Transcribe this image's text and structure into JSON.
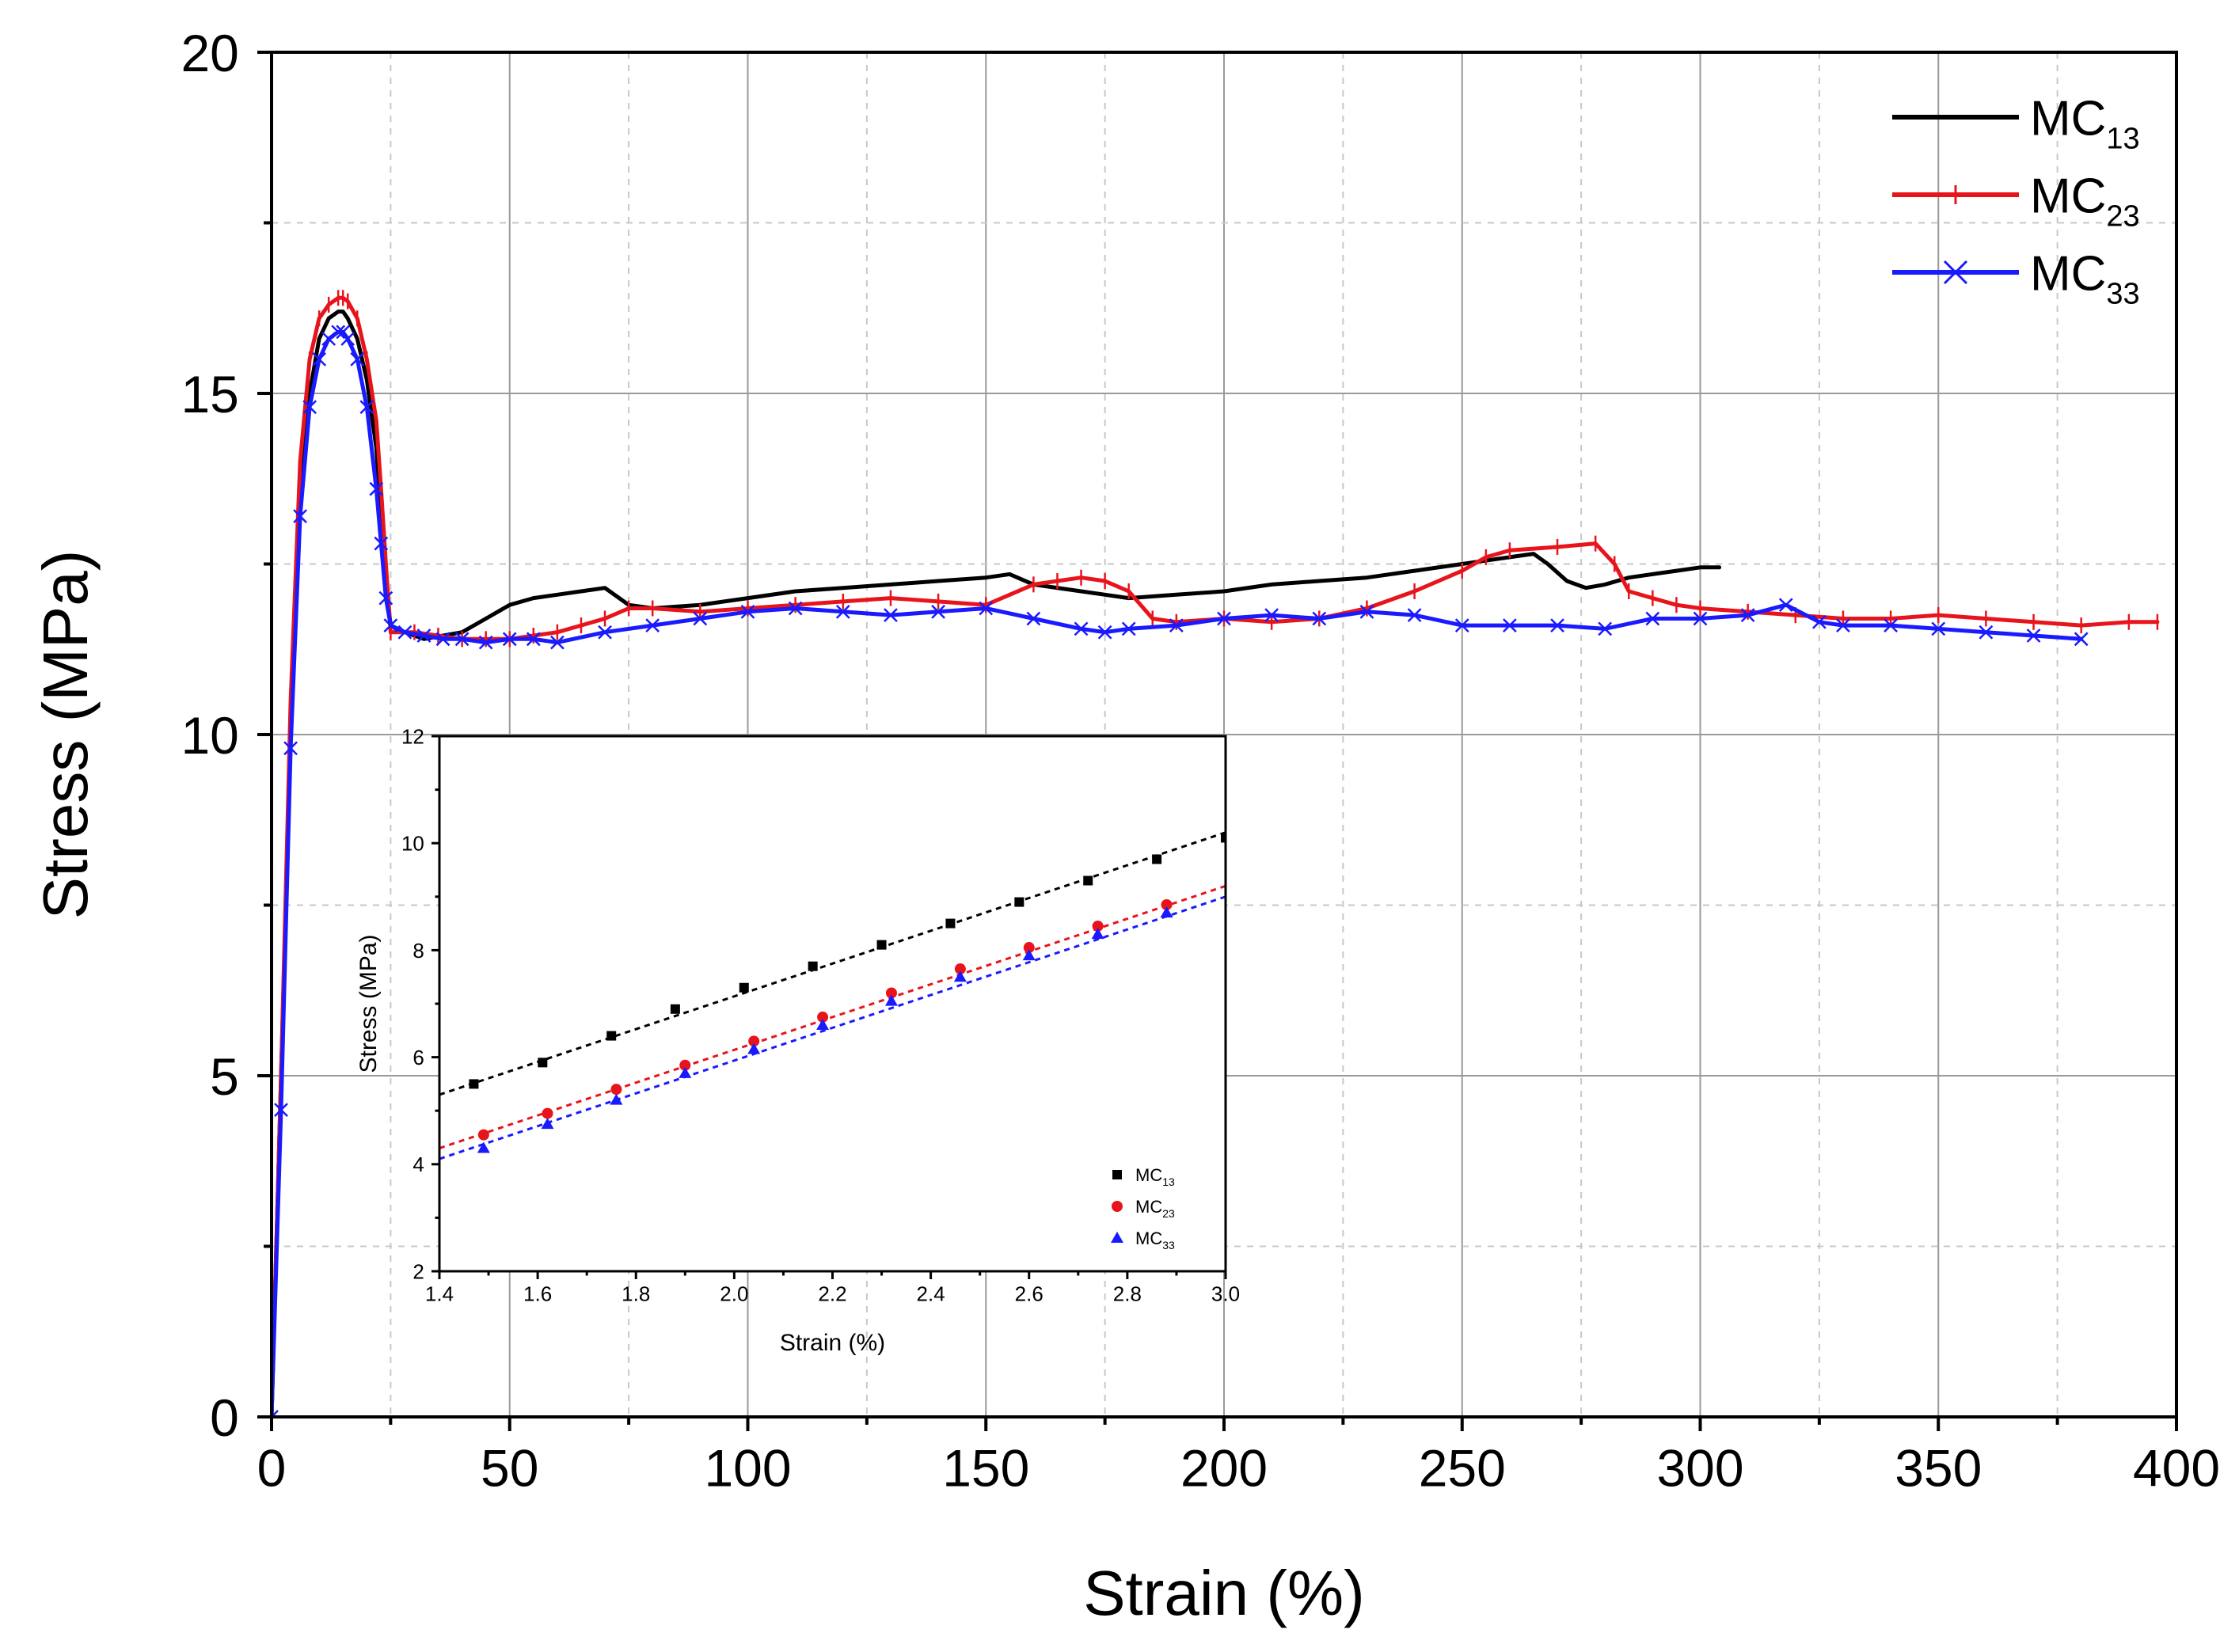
{
  "chart_data": [
    {
      "id": "main",
      "type": "line",
      "title": "",
      "xlabel": "Strain (%)",
      "ylabel": "Stress (MPa)",
      "xlim": [
        0,
        400
      ],
      "ylim": [
        0,
        20
      ],
      "xticks": [
        0,
        50,
        100,
        150,
        200,
        250,
        300,
        350,
        400
      ],
      "yticks": [
        0,
        5,
        10,
        15,
        20
      ],
      "xtick_labels": [
        "0",
        "50",
        "100",
        "150",
        "200",
        "250",
        "300",
        "350",
        "400"
      ],
      "ytick_labels": [
        "0",
        "5",
        "10",
        "15",
        "20"
      ],
      "grid": true,
      "legend_position": "top-right",
      "series": [
        {
          "name": "MC13",
          "legend_main": "MC",
          "legend_sub": "13",
          "color": "#000000",
          "marker": "none",
          "x": [
            0,
            2,
            4,
            6,
            8,
            10,
            12,
            14,
            15,
            16,
            18,
            20,
            22,
            23,
            24,
            25,
            28,
            32,
            36,
            40,
            45,
            50,
            55,
            60,
            65,
            70,
            75,
            80,
            90,
            100,
            110,
            120,
            130,
            140,
            150,
            155,
            160,
            170,
            180,
            190,
            200,
            210,
            220,
            230,
            240,
            250,
            255,
            260,
            265,
            268,
            272,
            276,
            280,
            285,
            290,
            295,
            300,
            304
          ],
          "y": [
            0,
            5,
            10,
            13.5,
            15,
            15.8,
            16.1,
            16.2,
            16.2,
            16.1,
            15.8,
            15.2,
            14.2,
            13.2,
            12.2,
            11.6,
            11.5,
            11.4,
            11.45,
            11.5,
            11.7,
            11.9,
            12.0,
            12.05,
            12.1,
            12.15,
            11.9,
            11.85,
            11.9,
            12.0,
            12.1,
            12.15,
            12.2,
            12.25,
            12.3,
            12.35,
            12.2,
            12.1,
            12.0,
            12.05,
            12.1,
            12.2,
            12.25,
            12.3,
            12.4,
            12.5,
            12.55,
            12.6,
            12.65,
            12.5,
            12.25,
            12.15,
            12.2,
            12.3,
            12.35,
            12.4,
            12.45,
            12.45
          ]
        },
        {
          "name": "MC23",
          "legend_main": "MC",
          "legend_sub": "23",
          "color": "#e8141c",
          "marker": "vline",
          "x": [
            0,
            2,
            4,
            6,
            8,
            10,
            12,
            14,
            15,
            16,
            18,
            20,
            22,
            23,
            24,
            25,
            30,
            35,
            40,
            45,
            50,
            55,
            60,
            65,
            70,
            75,
            80,
            90,
            100,
            110,
            120,
            130,
            140,
            150,
            160,
            165,
            170,
            175,
            180,
            185,
            190,
            200,
            210,
            220,
            230,
            240,
            250,
            255,
            260,
            270,
            278,
            282,
            285,
            290,
            295,
            300,
            310,
            320,
            330,
            340,
            350,
            360,
            370,
            380,
            390,
            396
          ],
          "y": [
            0,
            5,
            10.5,
            14,
            15.5,
            16.1,
            16.3,
            16.4,
            16.4,
            16.35,
            16.1,
            15.5,
            14.6,
            13.6,
            12.5,
            11.5,
            11.5,
            11.45,
            11.4,
            11.4,
            11.4,
            11.45,
            11.5,
            11.6,
            11.7,
            11.85,
            11.85,
            11.8,
            11.85,
            11.9,
            11.95,
            12.0,
            11.95,
            11.9,
            12.2,
            12.25,
            12.3,
            12.25,
            12.1,
            11.7,
            11.65,
            11.7,
            11.65,
            11.7,
            11.85,
            12.1,
            12.4,
            12.6,
            12.7,
            12.75,
            12.8,
            12.5,
            12.1,
            12.0,
            11.9,
            11.85,
            11.8,
            11.75,
            11.7,
            11.7,
            11.75,
            11.7,
            11.65,
            11.6,
            11.65,
            11.65
          ]
        },
        {
          "name": "MC33",
          "legend_main": "MC",
          "legend_sub": "33",
          "color": "#1a1aff",
          "marker": "x",
          "x": [
            0,
            2,
            4,
            6,
            8,
            10,
            12,
            14,
            15,
            16,
            18,
            20,
            22,
            23,
            24,
            25,
            28,
            32,
            36,
            40,
            45,
            50,
            55,
            60,
            70,
            80,
            90,
            100,
            110,
            120,
            130,
            140,
            150,
            160,
            170,
            175,
            180,
            190,
            200,
            210,
            220,
            230,
            240,
            250,
            260,
            270,
            280,
            290,
            300,
            310,
            318,
            325,
            330,
            340,
            350,
            360,
            370,
            380
          ],
          "y": [
            0,
            4.5,
            9.8,
            13.2,
            14.8,
            15.5,
            15.8,
            15.9,
            15.9,
            15.8,
            15.5,
            14.8,
            13.6,
            12.8,
            12.0,
            11.6,
            11.5,
            11.45,
            11.4,
            11.4,
            11.35,
            11.4,
            11.4,
            11.35,
            11.5,
            11.6,
            11.7,
            11.8,
            11.85,
            11.8,
            11.75,
            11.8,
            11.85,
            11.7,
            11.55,
            11.5,
            11.55,
            11.6,
            11.7,
            11.75,
            11.7,
            11.8,
            11.75,
            11.6,
            11.6,
            11.6,
            11.55,
            11.7,
            11.7,
            11.75,
            11.9,
            11.65,
            11.6,
            11.6,
            11.55,
            11.5,
            11.45,
            11.4
          ]
        }
      ]
    },
    {
      "id": "inset",
      "type": "scatter",
      "title": "",
      "xlabel": "Strain (%)",
      "ylabel": "Stress (MPa)",
      "xlim": [
        1.4,
        3.0
      ],
      "ylim": [
        2,
        12
      ],
      "xticks": [
        1.4,
        1.6,
        1.8,
        2.0,
        2.2,
        2.4,
        2.6,
        2.8,
        3.0
      ],
      "yticks": [
        2,
        4,
        6,
        8,
        10,
        12
      ],
      "xtick_labels": [
        "1.4",
        "1.6",
        "1.8",
        "2.0",
        "2.2",
        "2.4",
        "2.6",
        "2.8",
        "3.0"
      ],
      "ytick_labels": [
        "2",
        "4",
        "6",
        "8",
        "10",
        "12"
      ],
      "grid": false,
      "legend_position": "bottom-right",
      "series": [
        {
          "name": "MC13",
          "legend_main": "MC",
          "legend_sub": "13",
          "color": "#000000",
          "marker": "square",
          "x": [
            1.47,
            1.61,
            1.75,
            1.88,
            2.02,
            2.16,
            2.3,
            2.44,
            2.58,
            2.72,
            2.86,
            3.0
          ],
          "y": [
            5.5,
            5.9,
            6.4,
            6.9,
            7.3,
            7.7,
            8.1,
            8.5,
            8.9,
            9.3,
            9.7,
            10.1
          ],
          "fit": {
            "x": [
              1.4,
              3.0
            ],
            "y": [
              5.3,
              10.2
            ]
          }
        },
        {
          "name": "MC23",
          "legend_main": "MC",
          "legend_sub": "23",
          "color": "#e8141c",
          "marker": "circle",
          "x": [
            1.49,
            1.62,
            1.76,
            1.9,
            2.04,
            2.18,
            2.32,
            2.46,
            2.6,
            2.74,
            2.88
          ],
          "y": [
            4.55,
            4.95,
            5.4,
            5.85,
            6.3,
            6.75,
            7.2,
            7.65,
            8.05,
            8.45,
            8.85
          ],
          "fit": {
            "x": [
              1.4,
              3.0
            ],
            "y": [
              4.3,
              9.2
            ]
          }
        },
        {
          "name": "MC33",
          "legend_main": "MC",
          "legend_sub": "33",
          "color": "#1a1aff",
          "marker": "triangle",
          "x": [
            1.49,
            1.62,
            1.76,
            1.9,
            2.04,
            2.18,
            2.32,
            2.46,
            2.6,
            2.74,
            2.88
          ],
          "y": [
            4.3,
            4.75,
            5.2,
            5.7,
            6.15,
            6.6,
            7.05,
            7.5,
            7.9,
            8.3,
            8.7
          ],
          "fit": {
            "x": [
              1.4,
              3.0
            ],
            "y": [
              4.1,
              9.0
            ]
          }
        }
      ]
    }
  ]
}
